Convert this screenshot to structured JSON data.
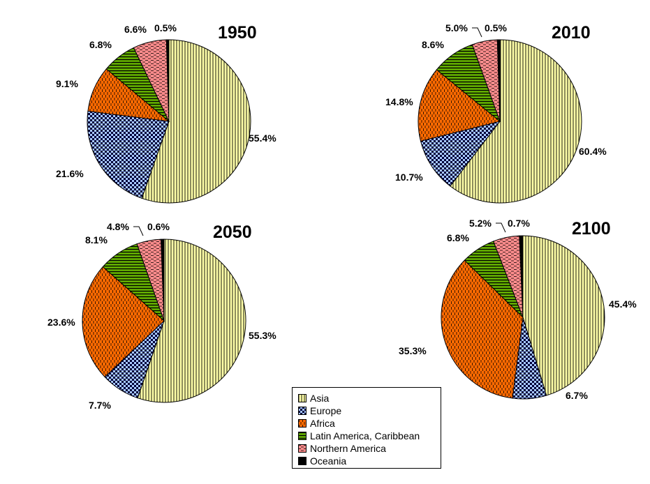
{
  "chart_data": [
    {
      "type": "pie",
      "title": "1950",
      "categories": [
        "Asia",
        "Europe",
        "Africa",
        "Latin America, Caribbean",
        "Northern America",
        "Oceania"
      ],
      "values": [
        55.4,
        21.6,
        9.1,
        6.8,
        6.6,
        0.5
      ],
      "labels": [
        "55.4%",
        "21.6%",
        "9.1%",
        "6.8%",
        "6.6%",
        "0.5%"
      ]
    },
    {
      "type": "pie",
      "title": "2010",
      "categories": [
        "Asia",
        "Europe",
        "Africa",
        "Latin America, Caribbean",
        "Northern America",
        "Oceania"
      ],
      "values": [
        60.4,
        10.7,
        14.8,
        8.6,
        5.0,
        0.5
      ],
      "labels": [
        "60.4%",
        "10.7%",
        "14.8%",
        "8.6%",
        "5.0%",
        "0.5%"
      ]
    },
    {
      "type": "pie",
      "title": "2050",
      "categories": [
        "Asia",
        "Europe",
        "Africa",
        "Latin America, Caribbean",
        "Northern America",
        "Oceania"
      ],
      "values": [
        55.3,
        7.7,
        23.6,
        8.1,
        4.8,
        0.6
      ],
      "labels": [
        "55.3%",
        "7.7%",
        "23.6%",
        "8.1%",
        "4.8%",
        "0.6%"
      ]
    },
    {
      "type": "pie",
      "title": "2100",
      "categories": [
        "Asia",
        "Europe",
        "Africa",
        "Latin America, Caribbean",
        "Northern America",
        "Oceania"
      ],
      "values": [
        45.4,
        6.7,
        35.3,
        6.8,
        5.2,
        0.7
      ],
      "labels": [
        "45.4%",
        "6.7%",
        "35.3%",
        "6.8%",
        "5.2%",
        "0.7%"
      ]
    }
  ],
  "legend": {
    "position": "bottom-center",
    "items": [
      {
        "label": "Asia",
        "color": "#ffffa8",
        "pattern": "vertical-lines"
      },
      {
        "label": "Europe",
        "color": "#a8c8ff",
        "pattern": "checker"
      },
      {
        "label": "Africa",
        "color": "#ff6a00",
        "pattern": "dashed-vertical"
      },
      {
        "label": "Latin America, Caribbean",
        "color": "#68b800",
        "pattern": "horizontal-lines"
      },
      {
        "label": "Northern America",
        "color": "#ff8c8c",
        "pattern": "dashed-horizontal"
      },
      {
        "label": "Oceania",
        "color": "#000000",
        "pattern": "solid"
      }
    ]
  }
}
